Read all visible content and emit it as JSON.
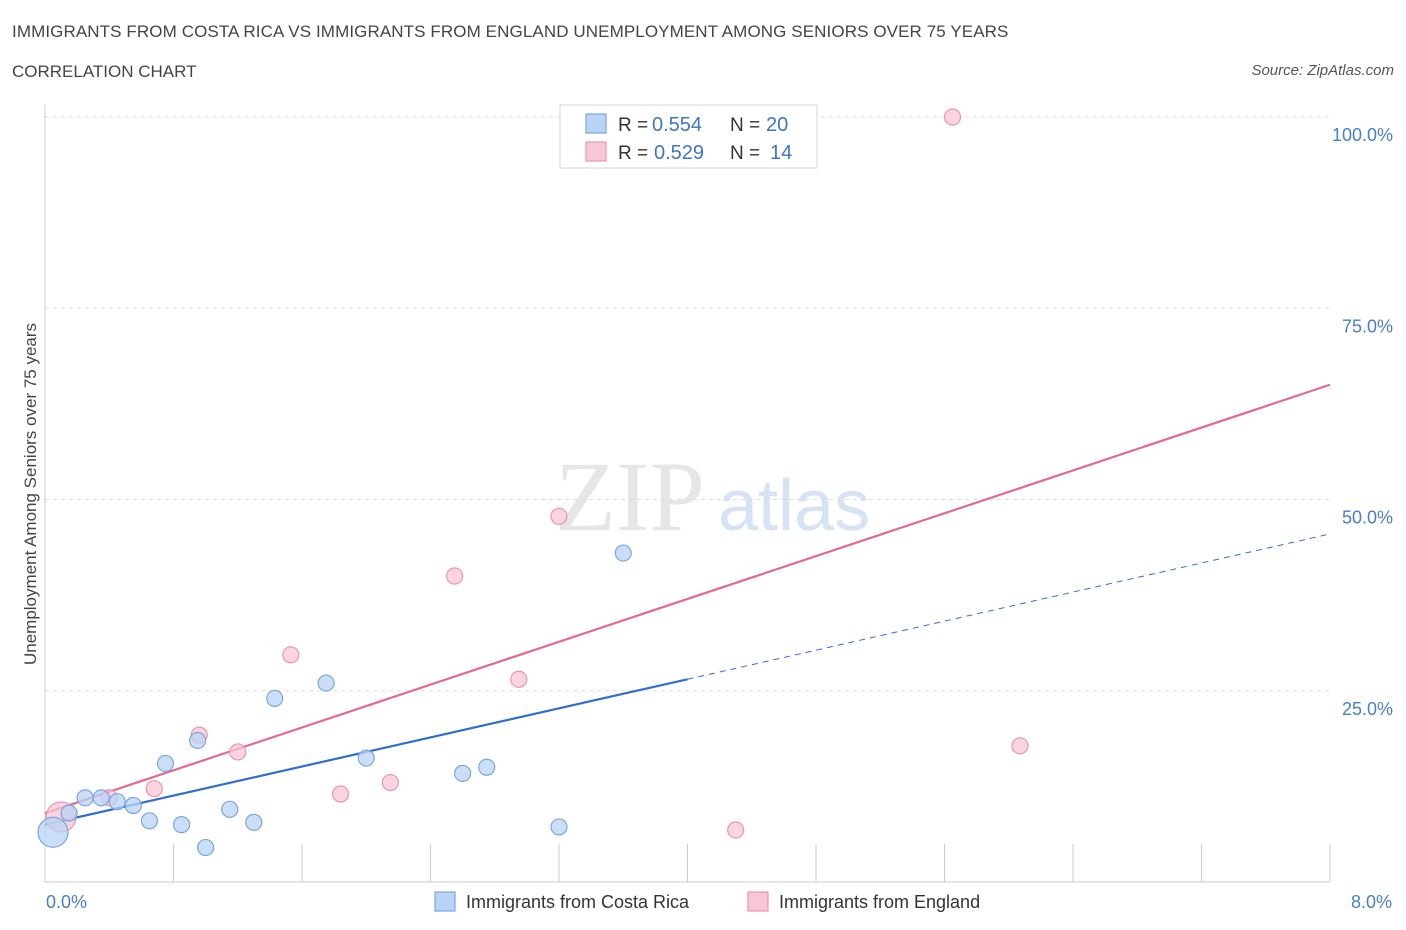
{
  "header": {
    "title": "IMMIGRANTS FROM COSTA RICA VS IMMIGRANTS FROM ENGLAND UNEMPLOYMENT AMONG SENIORS OVER 75 YEARS",
    "subtitle": "CORRELATION CHART",
    "source": "Source: ZipAtlas.com"
  },
  "watermark": {
    "zip": "ZIP",
    "atlas": "atlas"
  },
  "colors": {
    "costa_rica_fill": "#b9d3f5",
    "costa_rica_stroke": "#7aa6e0",
    "costa_rica_line": "#2f6fcf",
    "england_fill": "#f8c6d4",
    "england_stroke": "#ec94ae",
    "england_line": "#e06a92",
    "tick": "#4a7fc1",
    "grid": "#dcdcdc"
  },
  "legend_box": {
    "rows": [
      {
        "r_label": "R =",
        "r_value": "0.554",
        "n_label": "N =",
        "n_value": "20"
      },
      {
        "r_label": "R =",
        "r_value": "0.529",
        "n_label": "N =",
        "n_value": "14"
      }
    ]
  },
  "chart_data": {
    "type": "scatter",
    "title": "IMMIGRANTS FROM COSTA RICA VS IMMIGRANTS FROM ENGLAND UNEMPLOYMENT AMONG SENIORS OVER 75 YEARS",
    "xlabel": "",
    "ylabel": "Unemployment Among Seniors over 75 years",
    "xlim": [
      0,
      8
    ],
    "ylim": [
      0,
      100
    ],
    "x_tick_labels": {
      "min": "0.0%",
      "max": "8.0%"
    },
    "y_ticks": [
      {
        "value": 25,
        "label": "25.0%"
      },
      {
        "value": 50,
        "label": "50.0%"
      },
      {
        "value": 75,
        "label": "75.0%"
      },
      {
        "value": 100,
        "label": "100.0%"
      }
    ],
    "series": [
      {
        "name": "Immigrants from Costa Rica",
        "r": 0.554,
        "n": 20,
        "points": [
          {
            "x": 0.05,
            "y": 6.5,
            "size": "large"
          },
          {
            "x": 0.15,
            "y": 9.0
          },
          {
            "x": 0.25,
            "y": 11.0
          },
          {
            "x": 0.35,
            "y": 11.0
          },
          {
            "x": 0.45,
            "y": 10.5
          },
          {
            "x": 0.55,
            "y": 10.0
          },
          {
            "x": 0.65,
            "y": 8.0
          },
          {
            "x": 0.75,
            "y": 15.5
          },
          {
            "x": 0.85,
            "y": 7.5
          },
          {
            "x": 0.95,
            "y": 18.5
          },
          {
            "x": 1.0,
            "y": 4.5
          },
          {
            "x": 1.15,
            "y": 9.5
          },
          {
            "x": 1.3,
            "y": 7.8
          },
          {
            "x": 1.43,
            "y": 24.0
          },
          {
            "x": 1.75,
            "y": 26.0
          },
          {
            "x": 2.0,
            "y": 16.2
          },
          {
            "x": 2.6,
            "y": 14.2
          },
          {
            "x": 2.75,
            "y": 15.0
          },
          {
            "x": 3.2,
            "y": 7.2
          },
          {
            "x": 3.6,
            "y": 43.0
          }
        ],
        "trend": {
          "x0": 0.0,
          "y0": 7.5,
          "x1": 4.0,
          "y1": 26.5,
          "dash_to_x": 8.0,
          "dash_to_y": 45.5
        }
      },
      {
        "name": "Immigrants from England",
        "r": 0.529,
        "n": 14,
        "points": [
          {
            "x": 0.1,
            "y": 8.5,
            "size": "large"
          },
          {
            "x": 0.4,
            "y": 11.0
          },
          {
            "x": 0.68,
            "y": 12.2
          },
          {
            "x": 0.96,
            "y": 19.2
          },
          {
            "x": 1.2,
            "y": 17.0
          },
          {
            "x": 1.53,
            "y": 29.7
          },
          {
            "x": 1.84,
            "y": 11.5
          },
          {
            "x": 2.15,
            "y": 13.0
          },
          {
            "x": 2.55,
            "y": 40.0
          },
          {
            "x": 2.95,
            "y": 26.5
          },
          {
            "x": 3.2,
            "y": 47.8
          },
          {
            "x": 4.3,
            "y": 6.8
          },
          {
            "x": 5.65,
            "y": 100.0
          },
          {
            "x": 6.07,
            "y": 17.8
          }
        ],
        "trend": {
          "x0": 0.0,
          "y0": 9.0,
          "x1": 8.0,
          "y1": 65.0
        }
      }
    ],
    "legend": {
      "position": "bottom-center",
      "entries": [
        "Immigrants from Costa Rica",
        "Immigrants from England"
      ]
    }
  }
}
